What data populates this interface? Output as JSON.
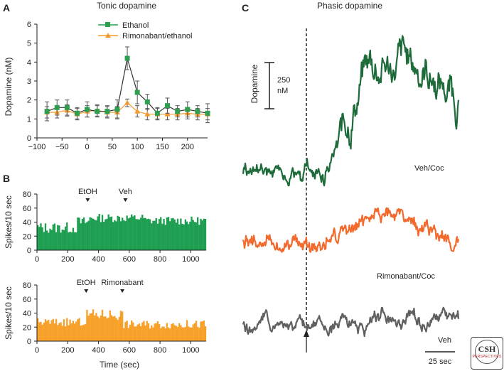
{
  "panel_a": {
    "letter": "A",
    "chart_data": {
      "type": "line",
      "title": "Tonic dopamine",
      "xlabel": "",
      "ylabel": "Dopamine (nM)",
      "xlim": [
        -100,
        240
      ],
      "ylim": [
        0,
        6
      ],
      "xticks": [
        "−100",
        "−50",
        "0",
        "50",
        "100",
        "150",
        "200"
      ],
      "xtick_values": [
        -100,
        -50,
        0,
        50,
        100,
        150,
        200
      ],
      "yticks": [
        "0",
        "1",
        "2",
        "3",
        "4",
        "5",
        "6"
      ],
      "ytick_values": [
        0,
        1,
        2,
        3,
        4,
        5,
        6
      ],
      "legend_position": "top-center",
      "series": [
        {
          "name": "Ethanol",
          "color": "#2e9e4f",
          "marker": "square",
          "x": [
            -80,
            -60,
            -40,
            -20,
            0,
            20,
            40,
            60,
            80,
            100,
            120,
            140,
            160,
            180,
            200,
            220,
            240
          ],
          "values": [
            1.4,
            1.6,
            1.6,
            1.3,
            1.5,
            1.4,
            1.4,
            1.5,
            4.2,
            2.4,
            1.9,
            1.3,
            1.7,
            1.4,
            1.5,
            1.4,
            1.3
          ],
          "errors": [
            0.5,
            0.4,
            0.4,
            0.3,
            0.4,
            0.3,
            0.3,
            0.5,
            0.6,
            0.6,
            0.4,
            0.3,
            0.4,
            0.3,
            0.4,
            0.3,
            0.5
          ]
        },
        {
          "name": "Rimonabant/ethanol",
          "color": "#f29a2e",
          "marker": "triangle",
          "x": [
            -80,
            -60,
            -40,
            -20,
            0,
            20,
            40,
            60,
            80,
            100,
            120,
            140,
            160,
            180,
            200,
            220,
            240
          ],
          "values": [
            1.35,
            1.35,
            1.45,
            1.25,
            1.4,
            1.45,
            1.35,
            1.35,
            1.85,
            1.4,
            1.25,
            1.25,
            1.25,
            1.25,
            1.3,
            1.25,
            1.25
          ],
          "errors": [
            0.3,
            0.3,
            0.3,
            0.3,
            0.3,
            0.3,
            0.3,
            0.3,
            0.2,
            0.3,
            0.3,
            0.3,
            0.3,
            0.3,
            0.3,
            0.3,
            0.3
          ]
        }
      ]
    }
  },
  "panel_b": {
    "letter": "B",
    "chart_data": [
      {
        "type": "bar",
        "color": "#1e9e50",
        "ylabel": "Spikes/10 sec",
        "xlim": [
          0,
          1100
        ],
        "ylim": [
          0,
          80
        ],
        "xticks": [
          "0",
          "200",
          "400",
          "600",
          "800",
          "1000"
        ],
        "xtick_values": [
          0,
          200,
          400,
          600,
          800,
          1000
        ],
        "yticks": [
          "0",
          "20",
          "40",
          "60",
          "80"
        ],
        "ytick_values": [
          0,
          20,
          40,
          60,
          80
        ],
        "markers": [
          {
            "label": "EtOH",
            "x": 330
          },
          {
            "label": "Veh",
            "x": 575
          }
        ],
        "bin_width": 10,
        "segments": [
          {
            "from": 0,
            "to": 260,
            "level": 32,
            "noise": 8
          },
          {
            "from": 260,
            "to": 340,
            "level": 40,
            "noise": 8
          },
          {
            "from": 340,
            "to": 700,
            "level": 46,
            "noise": 6
          },
          {
            "from": 700,
            "to": 1100,
            "level": 42,
            "noise": 6
          }
        ]
      },
      {
        "type": "bar",
        "color": "#f7a02a",
        "ylabel": "Spikes/10 sec",
        "xlabel": "Time (sec)",
        "xlim": [
          0,
          1100
        ],
        "ylim": [
          0,
          80
        ],
        "xticks": [
          "0",
          "200",
          "400",
          "600",
          "800",
          "1000"
        ],
        "xtick_values": [
          0,
          200,
          400,
          600,
          800,
          1000
        ],
        "yticks": [
          "0",
          "20",
          "40",
          "60",
          "80"
        ],
        "ytick_values": [
          0,
          20,
          40,
          60,
          80
        ],
        "markers": [
          {
            "label": "EtOH",
            "x": 320
          },
          {
            "label": "Rimonabant",
            "x": 555
          }
        ],
        "bin_width": 10,
        "segments": [
          {
            "from": 0,
            "to": 320,
            "level": 27,
            "noise": 6
          },
          {
            "from": 320,
            "to": 560,
            "level": 38,
            "noise": 8
          },
          {
            "from": 560,
            "to": 1100,
            "level": 24,
            "noise": 6
          }
        ]
      }
    ]
  },
  "panel_c": {
    "letter": "C",
    "chart_data": {
      "type": "line",
      "title": "Phasic dopamine",
      "ylabel": "Dopamine",
      "scale_bar_y": "250",
      "scale_bar_y_unit": "nM",
      "scale_bar_x": "25 sec",
      "series": [
        {
          "name": "Veh/Coc",
          "color": "#1e6b3a",
          "baseline": 0,
          "shape": "rise",
          "peak": 1.3
        },
        {
          "name": "Rimonabant/Coc",
          "color": "#f26a2e",
          "baseline": 0,
          "shape": "bump",
          "peak": 0.35
        },
        {
          "name": "Veh",
          "color": "#606060",
          "baseline": 0,
          "shape": "flat",
          "peak": 0.1
        }
      ]
    }
  },
  "logo": {
    "text": "CSH",
    "sub": "PERSPECTIVES"
  }
}
